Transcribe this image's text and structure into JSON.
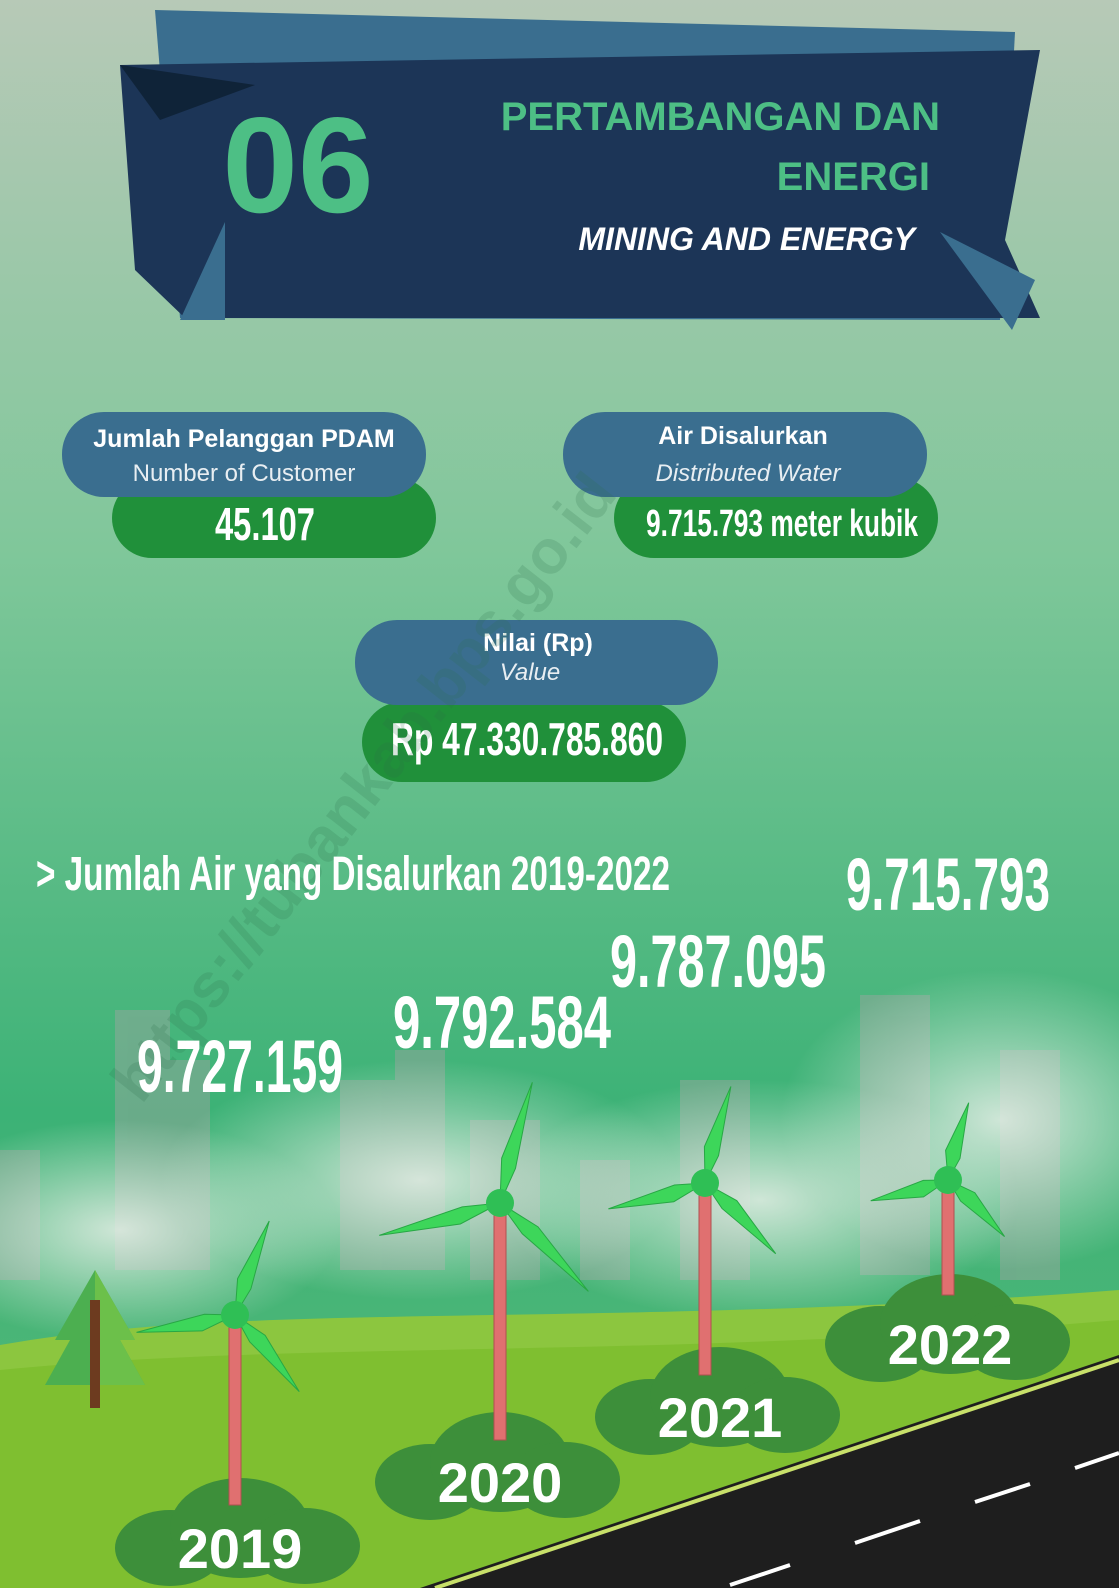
{
  "header": {
    "number": "06",
    "title_line1": "PERTAMBANGAN DAN",
    "title_line2": "ENERGI",
    "subtitle": "MINING AND ENERGY"
  },
  "stats": [
    {
      "label": "Jumlah Pelanggan PDAM",
      "label_en": "Number of Customer",
      "value": "45.107"
    },
    {
      "label": "Air Disalurkan",
      "label_en": "Distributed Water",
      "value": "9.715.793 meter kubik"
    },
    {
      "label": "Nilai (Rp)",
      "label_en": "Value",
      "value": "Rp 47.330.785.860"
    }
  ],
  "watermark": "https://tubankab.bps.go.id",
  "water_chart": {
    "title": "> Jumlah Air yang Disalurkan 2019-2022",
    "items": [
      {
        "year": "2019",
        "value": "9.727.159"
      },
      {
        "year": "2020",
        "value": "9.792.584"
      },
      {
        "year": "2021",
        "value": "9.787.095"
      },
      {
        "year": "2022",
        "value": "9.715.793"
      }
    ]
  }
}
